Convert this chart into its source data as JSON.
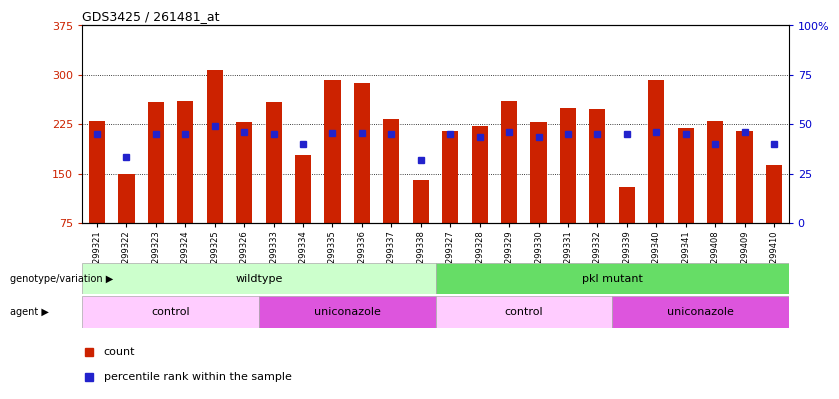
{
  "title": "GDS3425 / 261481_at",
  "samples": [
    "GSM299321",
    "GSM299322",
    "GSM299323",
    "GSM299324",
    "GSM299325",
    "GSM299326",
    "GSM299333",
    "GSM299334",
    "GSM299335",
    "GSM299336",
    "GSM299337",
    "GSM299338",
    "GSM299327",
    "GSM299328",
    "GSM299329",
    "GSM299330",
    "GSM299331",
    "GSM299332",
    "GSM299339",
    "GSM299340",
    "GSM299341",
    "GSM299408",
    "GSM299409",
    "GSM299410"
  ],
  "bar_heights": [
    230,
    150,
    258,
    260,
    308,
    228,
    258,
    178,
    292,
    288,
    233,
    140,
    215,
    222,
    260,
    228,
    250,
    248,
    130,
    292,
    220,
    230,
    215,
    163
  ],
  "blue_y": [
    210,
    175,
    210,
    210,
    222,
    213,
    210,
    195,
    212,
    212,
    210,
    170,
    210,
    205,
    213,
    205,
    210,
    210,
    210,
    213,
    210,
    195,
    213,
    195
  ],
  "bar_color": "#cc2200",
  "blue_color": "#2222cc",
  "ymin": 75,
  "ymax": 375,
  "yticks_left": [
    75,
    150,
    225,
    300,
    375
  ],
  "yticks_right": [
    0,
    25,
    50,
    75,
    100
  ],
  "left_tick_color": "#cc2200",
  "right_tick_color": "#0000cc",
  "grid_color": "#000000",
  "plot_bg": "#ffffff",
  "fig_bg": "#ffffff",
  "genotype_groups": [
    {
      "label": "wildtype",
      "start": 0,
      "end": 12,
      "color": "#ccffcc"
    },
    {
      "label": "pkl mutant",
      "start": 12,
      "end": 24,
      "color": "#66dd66"
    }
  ],
  "agent_groups": [
    {
      "label": "control",
      "start": 0,
      "end": 6,
      "color": "#ffccff"
    },
    {
      "label": "uniconazole",
      "start": 6,
      "end": 12,
      "color": "#dd55dd"
    },
    {
      "label": "control",
      "start": 12,
      "end": 18,
      "color": "#ffccff"
    },
    {
      "label": "uniconazole",
      "start": 18,
      "end": 24,
      "color": "#dd55dd"
    }
  ],
  "legend_items": [
    {
      "label": "count",
      "color": "#cc2200"
    },
    {
      "label": "percentile rank within the sample",
      "color": "#2222cc"
    }
  ]
}
